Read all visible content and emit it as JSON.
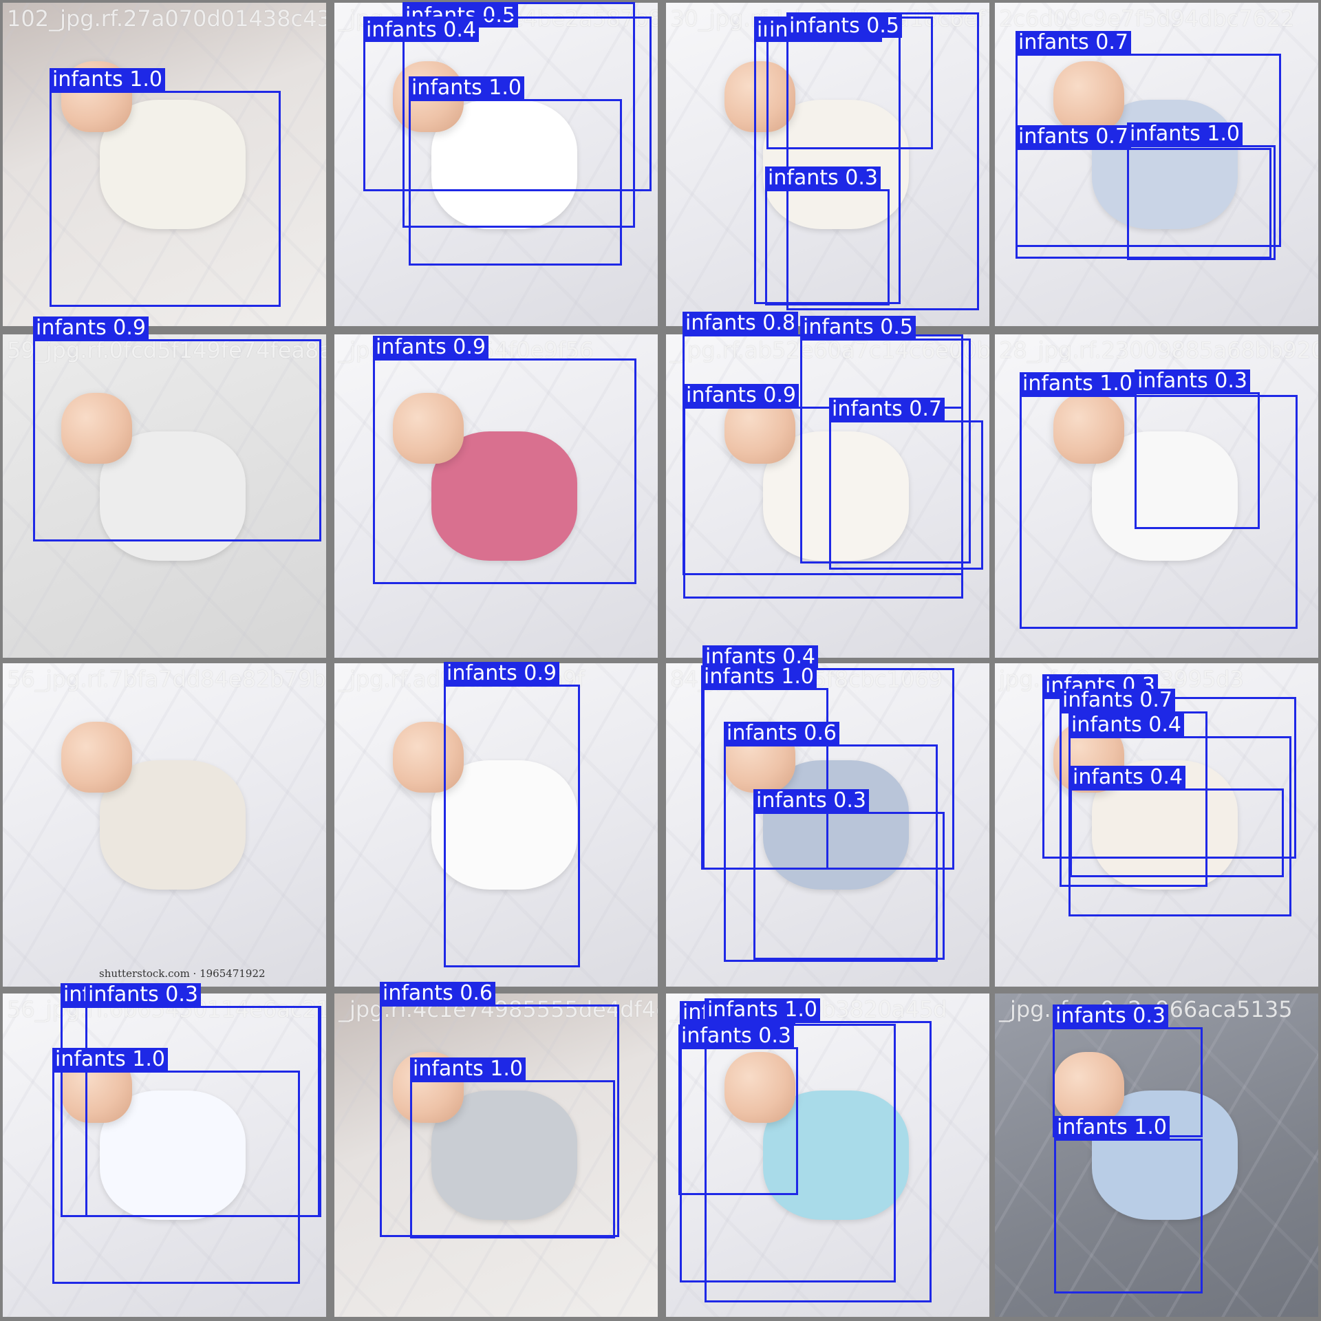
{
  "mosaic": {
    "tiles": [
      {
        "filename": "102_jpg.rf.27a070d01438c43",
        "detections": [
          {
            "label": "infants",
            "confidence": "1.0"
          }
        ]
      },
      {
        "filename": "_jpg.rf.eb3a9d2e4be2a587b8c",
        "detections": [
          {
            "label": "infants",
            "confidence": "0.5"
          },
          {
            "label": "infants",
            "confidence": "0.4"
          },
          {
            "label": "infants",
            "confidence": "1.0"
          }
        ]
      },
      {
        "filename": "30_jpg.rf.1de35d2c9a18c6ef7",
        "detections": [
          {
            "label": "infants",
            "confidence": "1.0"
          },
          {
            "label": "infants",
            "confidence": "0.3"
          },
          {
            "label": "infants",
            "confidence": "0.5"
          },
          {
            "label": "infants",
            "confidence": "0.3"
          }
        ]
      },
      {
        "filename": "2c6d09c9e7f5d94dbc7622",
        "detections": [
          {
            "label": "infants",
            "confidence": "0.7"
          },
          {
            "label": "infants",
            "confidence": "0.7"
          },
          {
            "label": "infants",
            "confidence": "1.0"
          }
        ]
      },
      {
        "filename": "59_jpg.rf.0fcd5f149fe74fea8a",
        "detections": [
          {
            "label": "infants",
            "confidence": "0.9"
          }
        ]
      },
      {
        "filename": "_jpg.rf.0a94c54f0e9f56",
        "detections": [
          {
            "label": "infants",
            "confidence": "0.9"
          }
        ]
      },
      {
        "filename": "_jpg.rf.ab52e60a7c14c6e00b",
        "detections": [
          {
            "label": "infants",
            "confidence": "0.8"
          },
          {
            "label": "infants",
            "confidence": "0.5"
          },
          {
            "label": "infants",
            "confidence": "0.9"
          },
          {
            "label": "infants",
            "confidence": "0.7"
          }
        ]
      },
      {
        "filename": "28_jpg.rf.23009885a68bb920",
        "detections": [
          {
            "label": "infants",
            "confidence": "1.0"
          },
          {
            "label": "infants",
            "confidence": "0.3"
          }
        ]
      },
      {
        "filename": "56_jpg.rf.7bfa7dd84e82b79b4",
        "watermark": "shutterstock.com · 1965471922",
        "detections": []
      },
      {
        "filename": "_jpg.rf.ad9cd27a8ea9f",
        "detections": [
          {
            "label": "infants",
            "confidence": "0.9"
          }
        ]
      },
      {
        "filename": "84_jpg.rf.4c55f8cbc1069",
        "detections": [
          {
            "label": "infants",
            "confidence": "0.4"
          },
          {
            "label": "infants",
            "confidence": "1.0"
          },
          {
            "label": "infants",
            "confidence": "0.6"
          },
          {
            "label": "infants",
            "confidence": "0.3"
          }
        ]
      },
      {
        "filename": "jpg.rf.e0d81803995d3",
        "detections": [
          {
            "label": "infants",
            "confidence": "0.3"
          },
          {
            "label": "infants",
            "confidence": "0.7"
          },
          {
            "label": "infants",
            "confidence": "0.4"
          },
          {
            "label": "infants",
            "confidence": "0.4"
          }
        ]
      },
      {
        "filename": "56_jpg.rf.6b65450114e6ac21942",
        "detections": [
          {
            "label": "infants",
            "confidence": "0.3"
          },
          {
            "label": "infants",
            "confidence": "0.3"
          },
          {
            "label": "infants",
            "confidence": "1.0"
          }
        ]
      },
      {
        "filename": "_jpg.rf.4c1e74985555de4df4c",
        "detections": [
          {
            "label": "infants",
            "confidence": "0.6"
          },
          {
            "label": "infants",
            "confidence": "1.0"
          }
        ]
      },
      {
        "filename": "_jpg.rf.7fa4b0b3820a45d",
        "detections": [
          {
            "label": "infants",
            "confidence": "0.4"
          },
          {
            "label": "infants",
            "confidence": "1.0"
          },
          {
            "label": "infants",
            "confidence": "0.3"
          }
        ]
      },
      {
        "filename": "_jpg.rf.ae0a2e966aca5135",
        "detections": [
          {
            "label": "infants",
            "confidence": "0.3"
          },
          {
            "label": "infants",
            "confidence": "1.0"
          }
        ]
      }
    ],
    "box_color": "#1e28e6",
    "label_text_color": "#ffffff"
  }
}
